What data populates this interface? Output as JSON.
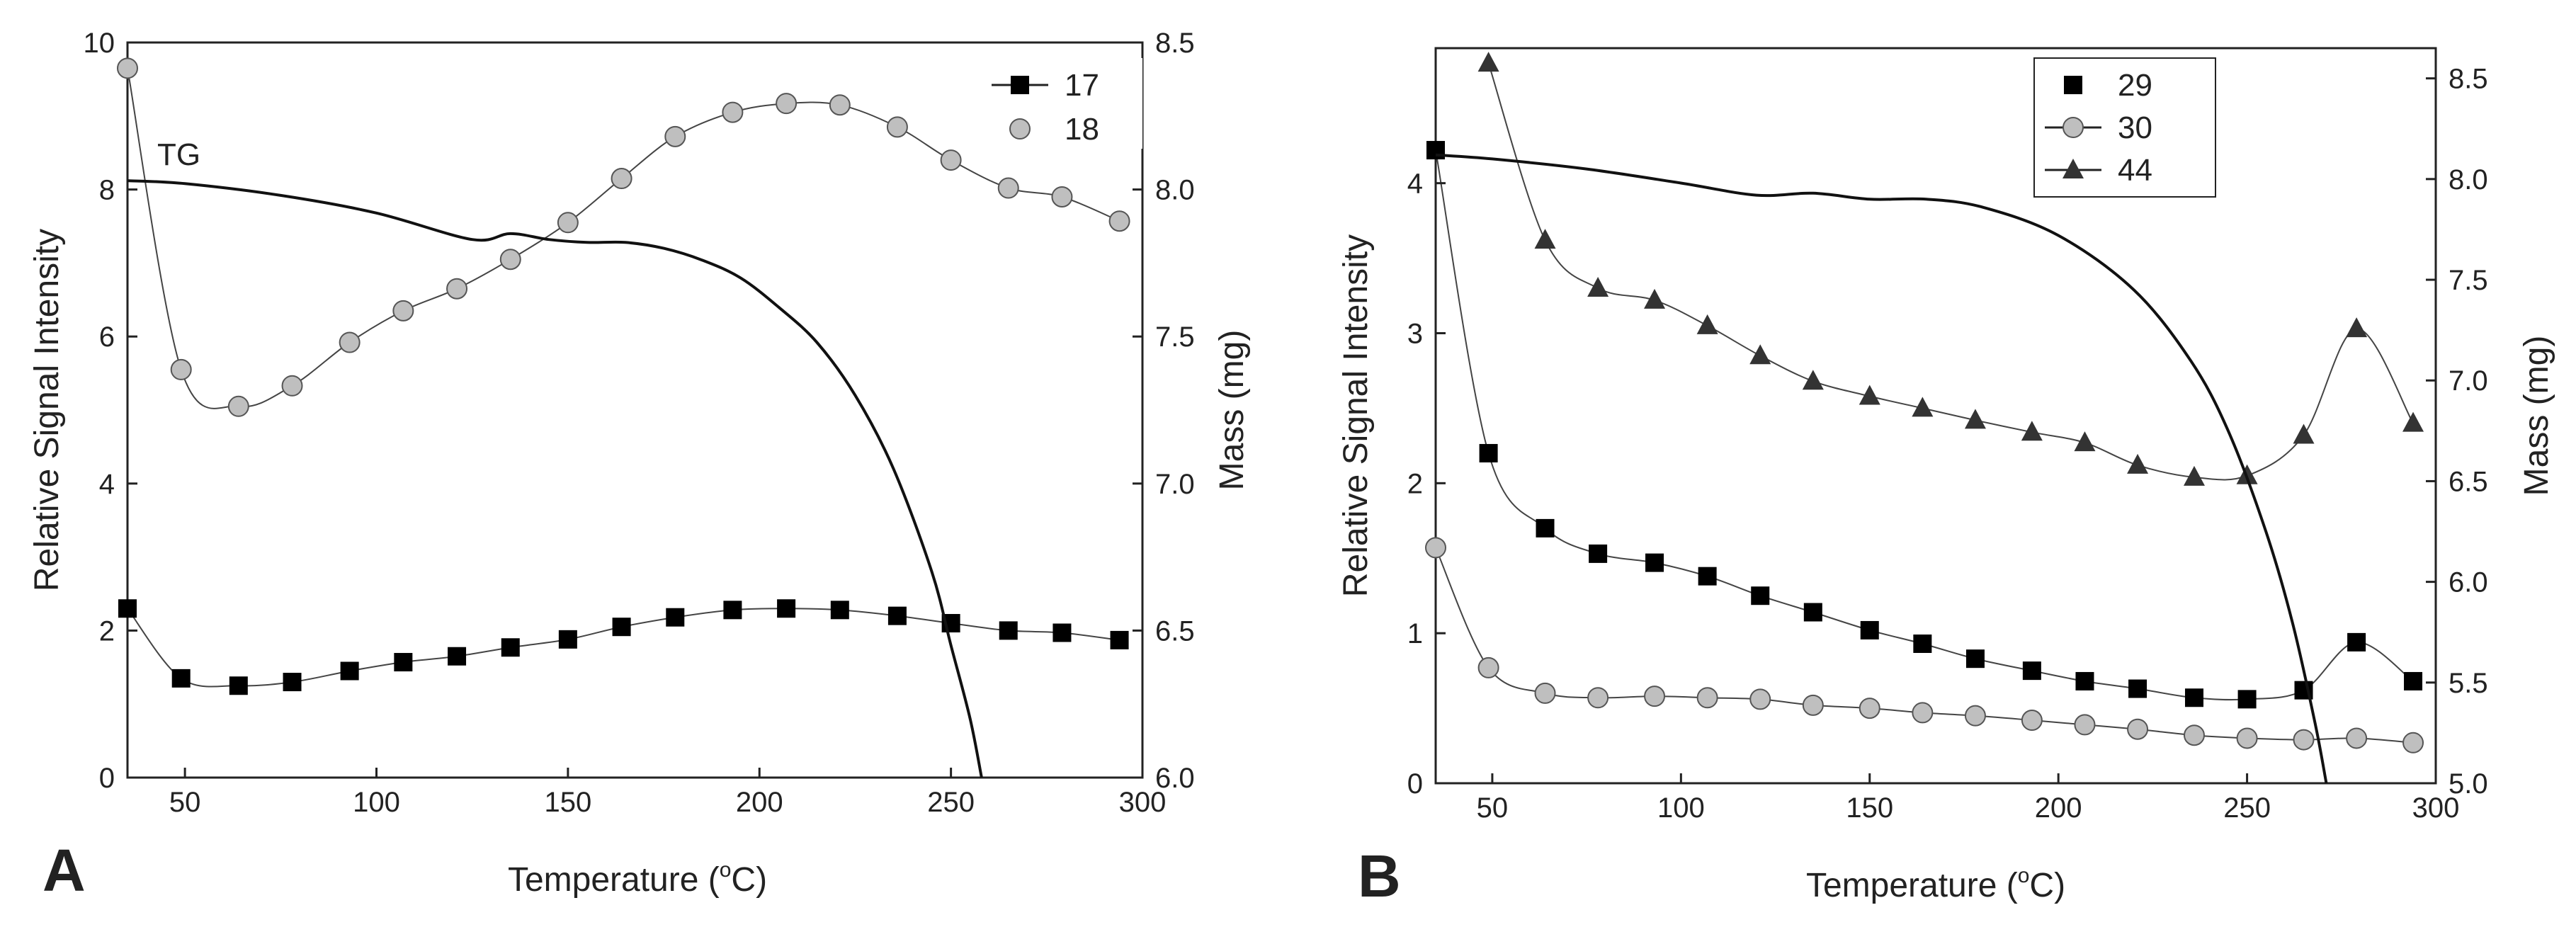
{
  "colors": {
    "axis": "#222222",
    "tg": "#111111",
    "black": "#000000",
    "grey": "#bfbfbf",
    "dark": "#333333"
  },
  "chart_data": [
    {
      "type": "line",
      "panel_label": "A",
      "xlabel": "Temperature (",
      "xlabel_degree": "o",
      "xlabel_unit": "C)",
      "ylabel": "Relative Signal Intensity",
      "y2label": "Mass (mg)",
      "xlim": [
        35,
        300
      ],
      "ylim": [
        0,
        10
      ],
      "y2lim": [
        6.0,
        8.5
      ],
      "xticks": [
        "50",
        "100",
        "150",
        "200",
        "250",
        "300"
      ],
      "yticks": [
        "0",
        "2",
        "4",
        "6",
        "8",
        "10"
      ],
      "y2ticks": [
        "6.0",
        "6.5",
        "7.0",
        "7.5",
        "8.0",
        "8.5"
      ],
      "annotation": "TG",
      "legend": {
        "position": "top-right",
        "entries": [
          {
            "label": "17",
            "marker": "square",
            "line": true
          },
          {
            "label": "18",
            "marker": "circle",
            "line": false
          }
        ]
      },
      "tg": {
        "name": "TG",
        "axis": "right",
        "x": [
          35,
          50,
          75,
          100,
          125,
          135,
          145,
          155,
          165,
          175,
          185,
          195,
          205,
          215,
          225,
          235,
          245,
          250,
          255,
          258
        ],
        "y": [
          8.03,
          8.02,
          7.98,
          7.92,
          7.83,
          7.85,
          7.83,
          7.82,
          7.82,
          7.8,
          7.76,
          7.7,
          7.6,
          7.48,
          7.3,
          7.05,
          6.7,
          6.45,
          6.2,
          6.0
        ]
      },
      "series": [
        {
          "name": "17",
          "marker": "square",
          "color": "#000000",
          "markers_x": [
            35,
            49,
            64,
            78,
            93,
            107,
            121,
            135,
            150,
            164,
            178,
            193,
            207,
            221,
            236,
            250,
            265,
            279,
            294
          ],
          "markers_y": [
            2.3,
            1.35,
            1.25,
            1.3,
            1.45,
            1.57,
            1.65,
            1.77,
            1.88,
            2.05,
            2.18,
            2.28,
            2.3,
            2.28,
            2.2,
            2.1,
            2.0,
            1.97,
            1.87
          ]
        },
        {
          "name": "18",
          "marker": "circle",
          "color": "#bfbfbf",
          "markers_x": [
            35,
            49,
            64,
            78,
            93,
            107,
            121,
            135,
            150,
            164,
            178,
            193,
            207,
            221,
            236,
            250,
            265,
            279,
            294
          ],
          "markers_y": [
            9.65,
            5.55,
            5.05,
            5.33,
            5.92,
            6.35,
            6.65,
            7.05,
            7.55,
            8.15,
            8.72,
            9.05,
            9.17,
            9.15,
            8.85,
            8.4,
            8.02,
            7.9,
            7.57
          ]
        }
      ]
    },
    {
      "type": "line",
      "panel_label": "B",
      "xlabel": "Temperature (",
      "xlabel_degree": "o",
      "xlabel_unit": "C)",
      "ylabel": "Relative Signal Intensity",
      "y2label": "Mass (mg)",
      "xlim": [
        35,
        300
      ],
      "ylim": [
        0,
        4.9
      ],
      "y2lim": [
        5.0,
        8.65
      ],
      "xticks": [
        "50",
        "100",
        "150",
        "200",
        "250",
        "300"
      ],
      "yticks": [
        "0",
        "1",
        "2",
        "3",
        "4"
      ],
      "y2ticks": [
        "5.0",
        "5.5",
        "6.0",
        "6.5",
        "7.0",
        "7.5",
        "8.0",
        "8.5"
      ],
      "legend": {
        "position": "top-right",
        "entries": [
          {
            "label": "29",
            "marker": "square",
            "line": false
          },
          {
            "label": "30",
            "marker": "circle",
            "line": true
          },
          {
            "label": "44",
            "marker": "triangle",
            "line": true
          }
        ]
      },
      "tg": {
        "name": "TG",
        "axis": "right",
        "x": [
          35,
          50,
          75,
          100,
          120,
          135,
          150,
          165,
          180,
          200,
          220,
          235,
          245,
          255,
          262,
          268,
          271
        ],
        "y": [
          8.12,
          8.1,
          8.05,
          7.98,
          7.92,
          7.93,
          7.9,
          7.9,
          7.86,
          7.72,
          7.45,
          7.1,
          6.75,
          6.25,
          5.8,
          5.3,
          5.0
        ]
      },
      "series": [
        {
          "name": "29",
          "marker": "square",
          "color": "#000000",
          "markers_x": [
            35,
            49,
            64,
            78,
            93,
            107,
            121,
            135,
            150,
            164,
            178,
            193,
            207,
            221,
            236,
            250,
            265,
            279,
            294
          ],
          "markers_y": [
            4.22,
            2.2,
            1.7,
            1.53,
            1.47,
            1.38,
            1.25,
            1.14,
            1.02,
            0.93,
            0.83,
            0.75,
            0.68,
            0.63,
            0.57,
            0.56,
            0.62,
            0.94,
            0.68
          ]
        },
        {
          "name": "30",
          "marker": "circle",
          "color": "#bfbfbf",
          "markers_x": [
            35,
            49,
            64,
            78,
            93,
            107,
            121,
            135,
            150,
            164,
            178,
            193,
            207,
            221,
            236,
            250,
            265,
            279,
            294
          ],
          "markers_y": [
            1.57,
            0.77,
            0.6,
            0.57,
            0.58,
            0.57,
            0.56,
            0.52,
            0.5,
            0.47,
            0.45,
            0.42,
            0.39,
            0.36,
            0.32,
            0.3,
            0.29,
            0.3,
            0.27
          ]
        },
        {
          "name": "44",
          "marker": "triangle",
          "color": "#333333",
          "markers_x": [
            49,
            64,
            78,
            93,
            107,
            121,
            135,
            150,
            164,
            178,
            193,
            207,
            221,
            236,
            250,
            265,
            279,
            294
          ],
          "markers_y": [
            4.8,
            3.62,
            3.3,
            3.22,
            3.05,
            2.85,
            2.68,
            2.58,
            2.5,
            2.42,
            2.34,
            2.27,
            2.12,
            2.04,
            2.05,
            2.32,
            3.03,
            2.4
          ]
        }
      ]
    }
  ]
}
